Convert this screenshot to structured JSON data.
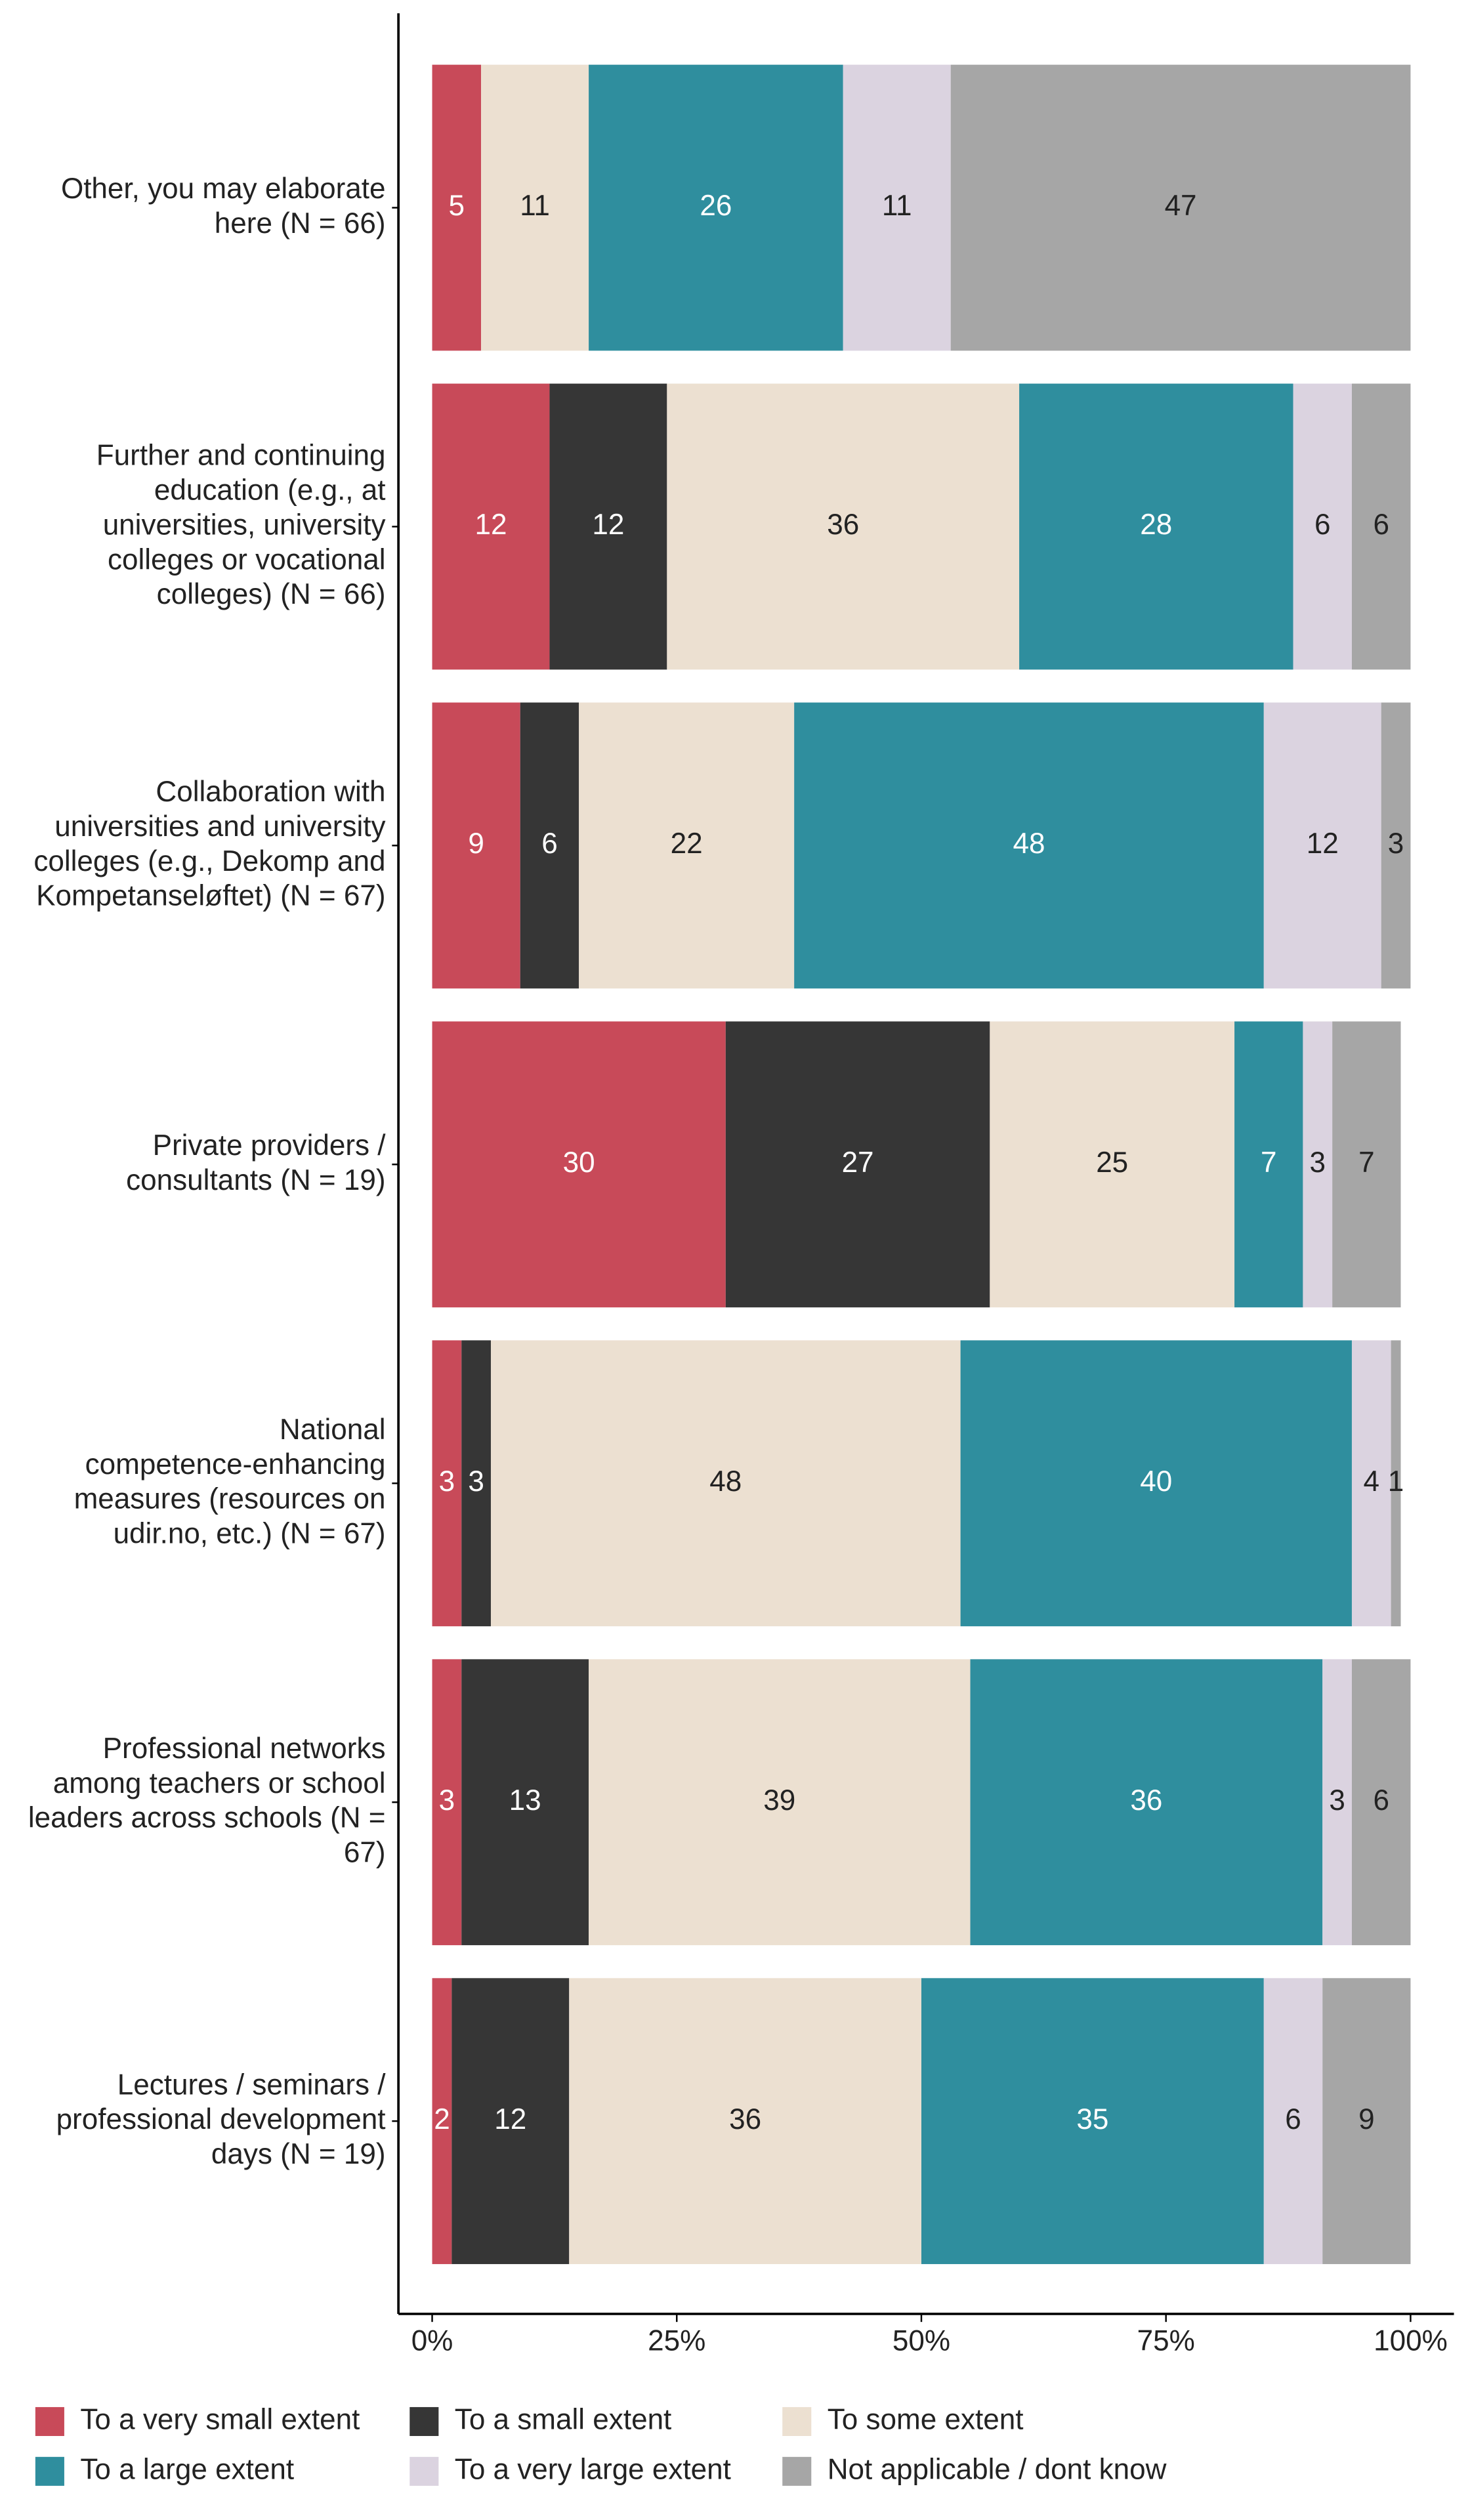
{
  "chart_data": {
    "type": "stacked-barh",
    "categories": [
      "Other, you may elaborate here (N = 66)",
      "Further and continuing education (e.g., at universities, university colleges or vocational colleges) (N = 66)",
      "Collaboration with universities and university colleges (e.g., Dekomp and Kompetanseløftet) (N = 67)",
      "Private providers / consultants (N = 19)",
      "National competence-enhancing measures (resources on udir.no, etc.) (N = 67)",
      "Professional networks among teachers or school leaders across schools (N = 67)",
      "Lectures / seminars / professional development days (N = 19)"
    ],
    "series": [
      {
        "name": "To a very small extent",
        "color": "#c84a59",
        "values": [
          5,
          12,
          9,
          30,
          3,
          3,
          2
        ]
      },
      {
        "name": "To a small extent",
        "color": "#363636",
        "values": [
          null,
          12,
          6,
          27,
          3,
          13,
          12
        ]
      },
      {
        "name": "To some extent",
        "color": "#ece0d1",
        "values": [
          11,
          36,
          22,
          25,
          48,
          39,
          36
        ]
      },
      {
        "name": "To a large extent",
        "color": "#2f8e9e",
        "values": [
          26,
          28,
          48,
          7,
          40,
          36,
          35
        ]
      },
      {
        "name": "To a very large extent",
        "color": "#dbd3e0",
        "values": [
          11,
          6,
          12,
          3,
          4,
          3,
          6
        ]
      },
      {
        "name": "Not applicable / dont know",
        "color": "#a6a6a6",
        "values": [
          47,
          6,
          3,
          7,
          1,
          6,
          9
        ]
      }
    ],
    "xlim": [
      0,
      100
    ],
    "xticks": [
      {
        "value": 0,
        "label": "0%"
      },
      {
        "value": 25,
        "label": "25%"
      },
      {
        "value": 50,
        "label": "50%"
      },
      {
        "value": 75,
        "label": "75%"
      },
      {
        "value": 100,
        "label": "100%"
      }
    ]
  }
}
